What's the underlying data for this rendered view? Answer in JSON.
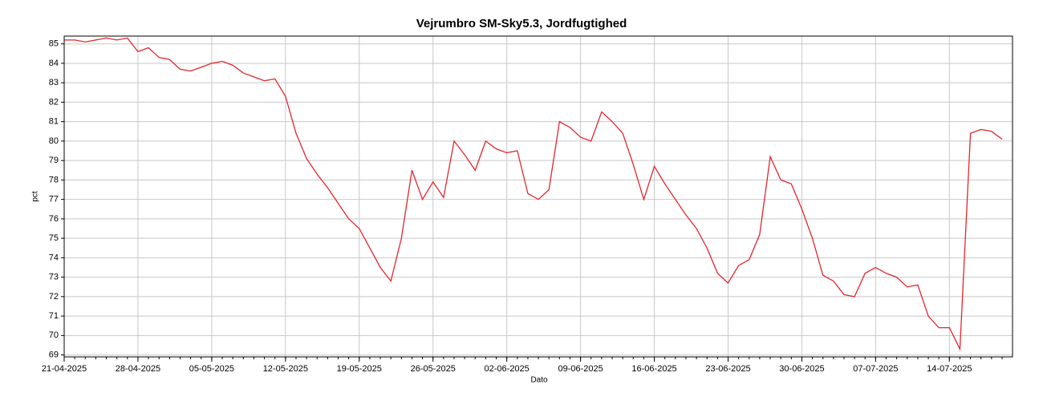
{
  "chart_data": {
    "type": "line",
    "title": "Vejrumbro SM-Sky5.3, Jordfugtighed",
    "x_label": "Dato",
    "y_label": "pct",
    "x": [
      "21-04-2025",
      "22-04-2025",
      "23-04-2025",
      "24-04-2025",
      "25-04-2025",
      "26-04-2025",
      "27-04-2025",
      "28-04-2025",
      "29-04-2025",
      "30-04-2025",
      "01-05-2025",
      "02-05-2025",
      "03-05-2025",
      "04-05-2025",
      "05-05-2025",
      "06-05-2025",
      "07-05-2025",
      "08-05-2025",
      "09-05-2025",
      "10-05-2025",
      "11-05-2025",
      "12-05-2025",
      "13-05-2025",
      "14-05-2025",
      "15-05-2025",
      "16-05-2025",
      "17-05-2025",
      "18-05-2025",
      "19-05-2025",
      "20-05-2025",
      "21-05-2025",
      "22-05-2025",
      "23-05-2025",
      "24-05-2025",
      "25-05-2025",
      "26-05-2025",
      "27-05-2025",
      "28-05-2025",
      "29-05-2025",
      "30-05-2025",
      "31-05-2025",
      "01-06-2025",
      "02-06-2025",
      "03-06-2025",
      "04-06-2025",
      "05-06-2025",
      "06-06-2025",
      "07-06-2025",
      "08-06-2025",
      "09-06-2025",
      "10-06-2025",
      "11-06-2025",
      "12-06-2025",
      "13-06-2025",
      "14-06-2025",
      "15-06-2025",
      "16-06-2025",
      "17-06-2025",
      "18-06-2025",
      "19-06-2025",
      "20-06-2025",
      "21-06-2025",
      "22-06-2025",
      "23-06-2025",
      "24-06-2025",
      "25-06-2025",
      "26-06-2025",
      "27-06-2025",
      "28-06-2025",
      "29-06-2025",
      "30-06-2025",
      "01-07-2025",
      "02-07-2025",
      "03-07-2025",
      "04-07-2025",
      "05-07-2025",
      "06-07-2025",
      "07-07-2025",
      "08-07-2025",
      "09-07-2025",
      "10-07-2025",
      "11-07-2025",
      "12-07-2025",
      "13-07-2025",
      "14-07-2025",
      "15-07-2025",
      "16-07-2025",
      "17-07-2025",
      "18-07-2025",
      "19-07-2025"
    ],
    "series": [
      {
        "name": "pct",
        "color": "#e3262e",
        "values": [
          85.2,
          85.2,
          85.1,
          85.2,
          85.3,
          85.2,
          85.3,
          84.6,
          84.8,
          84.3,
          84.2,
          83.7,
          83.6,
          83.8,
          84.0,
          84.1,
          83.9,
          83.5,
          83.3,
          83.1,
          83.2,
          82.3,
          80.4,
          79.1,
          78.3,
          77.6,
          76.8,
          76.0,
          75.5,
          74.5,
          73.5,
          72.8,
          75.0,
          78.5,
          77.0,
          77.9,
          77.1,
          80.0,
          79.3,
          78.5,
          80.0,
          79.6,
          79.4,
          79.5,
          77.3,
          77.0,
          77.5,
          81.0,
          80.7,
          80.2,
          80.0,
          81.5,
          81.0,
          80.4,
          78.8,
          77.0,
          78.7,
          77.8,
          77.0,
          76.2,
          75.5,
          74.5,
          73.2,
          72.7,
          73.6,
          73.9,
          75.2,
          79.2,
          78.0,
          77.8,
          76.5,
          75.0,
          73.1,
          72.8,
          72.1,
          72.0,
          73.2,
          73.5,
          73.2,
          73.0,
          72.5,
          72.6,
          71.0,
          70.4,
          70.4,
          69.3,
          80.4,
          80.6,
          80.5,
          80.1
        ]
      }
    ],
    "xlim": [
      "21-04-2025",
      "19-07-2025"
    ],
    "xticks": [
      "21-04-2025",
      "28-04-2025",
      "05-05-2025",
      "12-05-2025",
      "19-05-2025",
      "26-05-2025",
      "02-06-2025",
      "09-06-2025",
      "16-06-2025",
      "23-06-2025",
      "30-06-2025",
      "07-07-2025",
      "14-07-2025"
    ],
    "ylim": [
      68.9,
      85.4
    ],
    "yticks": [
      69,
      70,
      71,
      72,
      73,
      74,
      75,
      76,
      77,
      78,
      79,
      80,
      81,
      82,
      83,
      84,
      85
    ],
    "grid": true
  }
}
